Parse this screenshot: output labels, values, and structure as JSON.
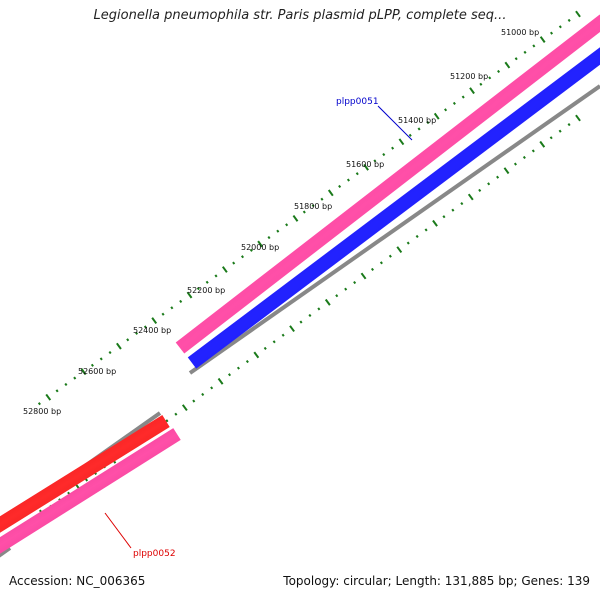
{
  "title": "Legionella pneumophila str. Paris plasmid pLPP, complete seq...",
  "footer": {
    "accession": "Accession: NC_006365",
    "summary": "Topology: circular; Length: 131,885 bp; Genes: 139"
  },
  "ticks": [
    {
      "bp": 51000,
      "label": "51000 bp"
    },
    {
      "bp": 51200,
      "label": "51200 bp"
    },
    {
      "bp": 51400,
      "label": "51400 bp"
    },
    {
      "bp": 51600,
      "label": "51600 bp"
    },
    {
      "bp": 51800,
      "label": "51800 bp"
    },
    {
      "bp": 52000,
      "label": "52000 bp"
    },
    {
      "bp": 52200,
      "label": "52200 bp"
    },
    {
      "bp": 52400,
      "label": "52400 bp"
    },
    {
      "bp": 52600,
      "label": "52600 bp"
    },
    {
      "bp": 52800,
      "label": "52800 bp"
    }
  ],
  "genes": [
    {
      "name": "plpp0051",
      "strand": "reverse",
      "color": "#0000ee",
      "label_color": "#0000cc"
    },
    {
      "name": "plpp0052",
      "strand": "forward",
      "color": "#ff0000",
      "label_color": "#dd0000"
    }
  ],
  "colors": {
    "backbone": "#888888",
    "cds": "#ee1a8c",
    "tick": "#1a7a1a"
  }
}
